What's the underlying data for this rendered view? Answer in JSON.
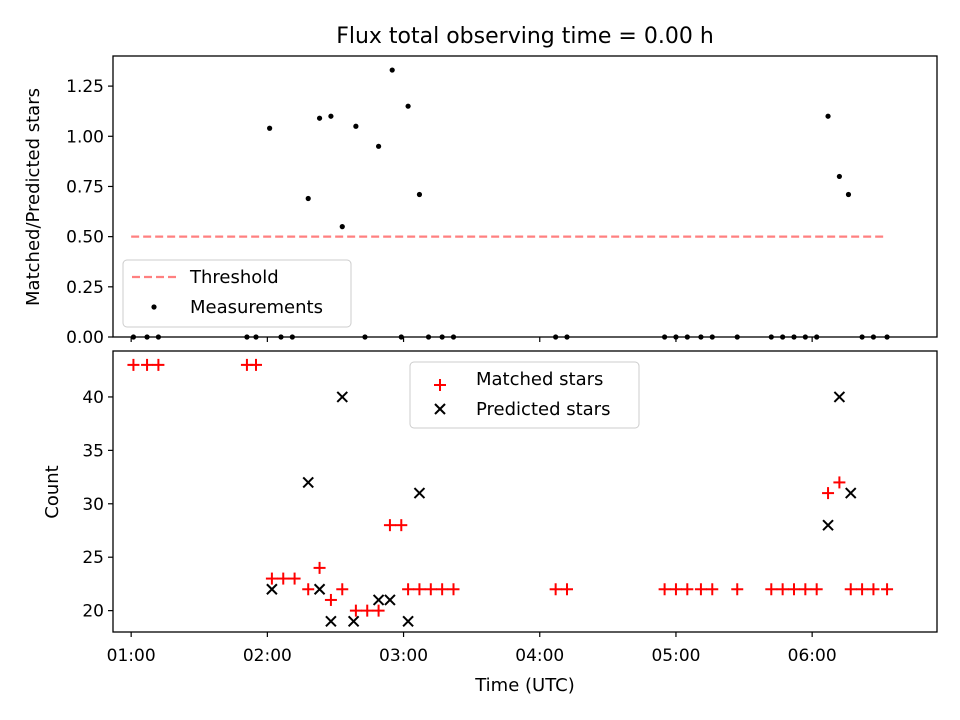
{
  "chart_data": [
    {
      "type": "scatter",
      "title": "Flux total observing time = 0.00 h",
      "xlabel": "",
      "ylabel": "Matched/Predicted stars",
      "xlim": [
        "00:52",
        "06:55"
      ],
      "ylim": [
        0,
        1.4
      ],
      "x_ticks": [
        "01:00",
        "02:00",
        "03:00",
        "04:00",
        "05:00",
        "06:00"
      ],
      "y_ticks": [
        "0.00",
        "0.25",
        "0.50",
        "0.75",
        "1.00",
        "1.25"
      ],
      "legend": {
        "position": "lower-left",
        "entries": [
          "Threshold",
          "Measurements"
        ]
      },
      "threshold": {
        "name": "Threshold",
        "y": 0.5,
        "x_start": "01:00",
        "x_end": "06:33",
        "color": "#ff8080",
        "style": "dashed"
      },
      "series": [
        {
          "name": "Measurements",
          "color": "#000000",
          "marker": "dot",
          "points": [
            [
              "01:01",
              0
            ],
            [
              "01:07",
              0
            ],
            [
              "01:12",
              0
            ],
            [
              "01:51",
              0
            ],
            [
              "01:55",
              0
            ],
            [
              "02:01",
              1.04
            ],
            [
              "02:06",
              0
            ],
            [
              "02:11",
              0
            ],
            [
              "02:18",
              0.69
            ],
            [
              "02:23",
              1.09
            ],
            [
              "02:28",
              1.1
            ],
            [
              "02:33",
              0.55
            ],
            [
              "02:39",
              1.05
            ],
            [
              "02:43",
              0
            ],
            [
              "02:49",
              0.95
            ],
            [
              "02:55",
              1.33
            ],
            [
              "02:59",
              0
            ],
            [
              "03:02",
              1.15
            ],
            [
              "03:07",
              0.71
            ],
            [
              "03:11",
              0
            ],
            [
              "03:17",
              0
            ],
            [
              "03:22",
              0
            ],
            [
              "04:07",
              0
            ],
            [
              "04:12",
              0
            ],
            [
              "04:55",
              0
            ],
            [
              "05:00",
              0
            ],
            [
              "05:05",
              0
            ],
            [
              "05:11",
              0
            ],
            [
              "05:16",
              0
            ],
            [
              "05:27",
              0
            ],
            [
              "05:42",
              0
            ],
            [
              "05:47",
              0
            ],
            [
              "05:52",
              0
            ],
            [
              "05:57",
              0
            ],
            [
              "06:02",
              0
            ],
            [
              "06:07",
              1.1
            ],
            [
              "06:12",
              0.8
            ],
            [
              "06:16",
              0.71
            ],
            [
              "06:22",
              0
            ],
            [
              "06:27",
              0
            ],
            [
              "06:33",
              0
            ]
          ]
        }
      ]
    },
    {
      "type": "scatter",
      "title": "",
      "xlabel": "Time (UTC)",
      "ylabel": "Count",
      "xlim": [
        "00:52",
        "06:55"
      ],
      "ylim": [
        18,
        44.3
      ],
      "x_ticks": [
        "01:00",
        "02:00",
        "03:00",
        "04:00",
        "05:00",
        "06:00"
      ],
      "y_ticks": [
        "20",
        "25",
        "30",
        "35",
        "40"
      ],
      "legend": {
        "position": "upper-center",
        "entries": [
          "Matched stars",
          "Predicted stars"
        ]
      },
      "series": [
        {
          "name": "Matched stars",
          "color": "#ff0000",
          "marker": "plus",
          "points": [
            [
              "01:01",
              43
            ],
            [
              "01:07",
              43
            ],
            [
              "01:12",
              43
            ],
            [
              "01:51",
              43
            ],
            [
              "01:55",
              43
            ],
            [
              "02:02",
              23
            ],
            [
              "02:07",
              23
            ],
            [
              "02:12",
              23
            ],
            [
              "02:18",
              22
            ],
            [
              "02:23",
              24
            ],
            [
              "02:28",
              21
            ],
            [
              "02:33",
              22
            ],
            [
              "02:39",
              20
            ],
            [
              "02:44",
              20
            ],
            [
              "02:49",
              20
            ],
            [
              "02:54",
              28
            ],
            [
              "02:59",
              28
            ],
            [
              "03:02",
              22
            ],
            [
              "03:07",
              22
            ],
            [
              "03:12",
              22
            ],
            [
              "03:17",
              22
            ],
            [
              "03:22",
              22
            ],
            [
              "04:07",
              22
            ],
            [
              "04:12",
              22
            ],
            [
              "04:55",
              22
            ],
            [
              "05:00",
              22
            ],
            [
              "05:05",
              22
            ],
            [
              "05:11",
              22
            ],
            [
              "05:16",
              22
            ],
            [
              "05:27",
              22
            ],
            [
              "05:42",
              22
            ],
            [
              "05:47",
              22
            ],
            [
              "05:52",
              22
            ],
            [
              "05:57",
              22
            ],
            [
              "06:02",
              22
            ],
            [
              "06:07",
              31
            ],
            [
              "06:12",
              32
            ],
            [
              "06:17",
              22
            ],
            [
              "06:22",
              22
            ],
            [
              "06:27",
              22
            ],
            [
              "06:33",
              22
            ]
          ]
        },
        {
          "name": "Predicted stars",
          "color": "#000000",
          "marker": "x",
          "points": [
            [
              "02:02",
              22
            ],
            [
              "02:18",
              32
            ],
            [
              "02:23",
              22
            ],
            [
              "02:28",
              19
            ],
            [
              "02:33",
              40
            ],
            [
              "02:38",
              19
            ],
            [
              "02:49",
              21
            ],
            [
              "02:54",
              21
            ],
            [
              "03:02",
              19
            ],
            [
              "03:07",
              31
            ],
            [
              "06:07",
              28
            ],
            [
              "06:12",
              40
            ],
            [
              "06:17",
              31
            ]
          ]
        }
      ]
    }
  ]
}
